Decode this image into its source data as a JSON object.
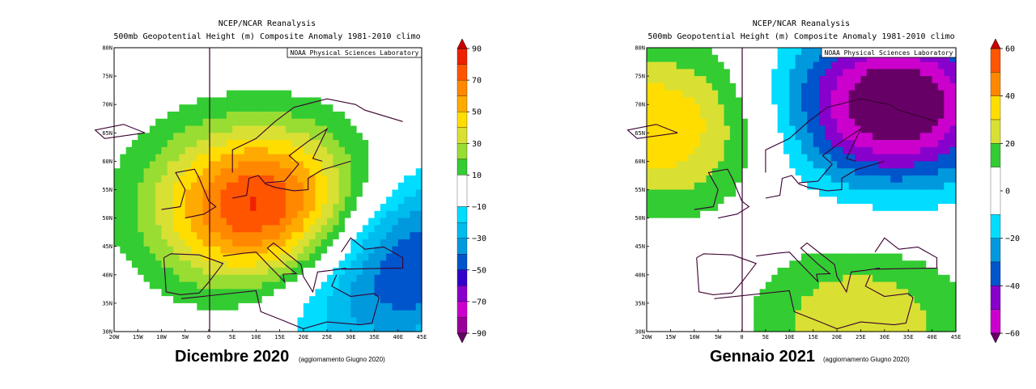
{
  "chart_data": [
    {
      "type": "heatmap",
      "source": "NCEP/NCAR Reanalysis",
      "title": "500mb Geopotential Height (m) Composite Anomaly 1981-2010 climo",
      "credit": "NOAA Physical Sciences Laboratory",
      "caption": "Dicembre 2020",
      "caption_note": "(aggiornamento Giugno 2020)",
      "x_tick_labels": [
        "20W",
        "15W",
        "10W",
        "5W",
        "0",
        "5E",
        "10E",
        "15E",
        "20E",
        "25E",
        "30E",
        "35E",
        "40E",
        "45E"
      ],
      "y_tick_labels": [
        "30N",
        "35N",
        "40N",
        "45N",
        "50N",
        "55N",
        "60N",
        "65N",
        "70N",
        "75N",
        "80N"
      ],
      "xlim": [
        -20,
        45
      ],
      "ylim": [
        30,
        80
      ],
      "colorbar_ticks": [
        90,
        70,
        50,
        30,
        10,
        -10,
        -30,
        -50,
        -70,
        -90
      ],
      "colorbar_levels": [
        90,
        80,
        70,
        60,
        50,
        40,
        30,
        20,
        10,
        -10,
        -20,
        -30,
        -40,
        -50,
        -60,
        -70,
        -80,
        -90
      ],
      "centers": [
        {
          "lon": 11,
          "lat": 52,
          "value": 85
        },
        {
          "lon": 45,
          "lat": 45,
          "value": -40
        },
        {
          "lon": 33,
          "lat": 36,
          "value": -25
        }
      ]
    },
    {
      "type": "heatmap",
      "source": "NCEP/NCAR Reanalysis",
      "title": "500mb Geopotential Height (m) Composite Anomaly 1981-2010 climo",
      "credit": "NOAA Physical Sciences Laboratory",
      "caption": "Gennaio 2021",
      "caption_note": "(aggiornamento Giugno 2020)",
      "x_tick_labels": [
        "20W",
        "15W",
        "10W",
        "5W",
        "0",
        "5E",
        "10E",
        "15E",
        "20E",
        "25E",
        "30E",
        "35E",
        "40E",
        "45E"
      ],
      "y_tick_labels": [
        "30N",
        "35N",
        "40N",
        "45N",
        "50N",
        "55N",
        "60N",
        "65N",
        "70N",
        "75N",
        "80N"
      ],
      "xlim": [
        -20,
        45
      ],
      "ylim": [
        30,
        80
      ],
      "colorbar_ticks": [
        60,
        40,
        20,
        0,
        -20,
        -40,
        -60
      ],
      "colorbar_levels": [
        60,
        50,
        40,
        30,
        20,
        10,
        -10,
        -20,
        -30,
        -40,
        -50,
        -60
      ],
      "centers": [
        {
          "lon": 32,
          "lat": 70,
          "value": -75
        },
        {
          "lon": -18,
          "lat": 66,
          "value": 40
        },
        {
          "lon": 25,
          "lat": 31,
          "value": 30
        }
      ]
    }
  ],
  "colors": {
    "positive": [
      "#33cc33",
      "#99dd33",
      "#d9e033",
      "#ffdd00",
      "#ffaa00",
      "#ff8800",
      "#ff5500",
      "#ee2200",
      "#cc0000"
    ],
    "negative": [
      "#00ddff",
      "#00bbee",
      "#0099dd",
      "#0055cc",
      "#3300cc",
      "#8800cc",
      "#cc00cc",
      "#990099",
      "#660066"
    ]
  }
}
